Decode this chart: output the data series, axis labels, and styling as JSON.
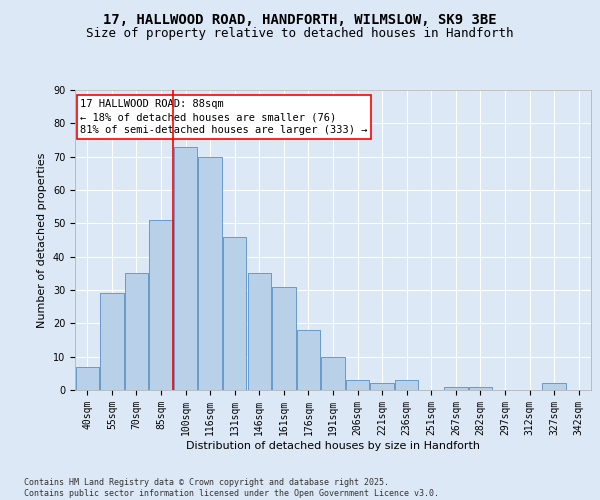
{
  "title_line1": "17, HALLWOOD ROAD, HANDFORTH, WILMSLOW, SK9 3BE",
  "title_line2": "Size of property relative to detached houses in Handforth",
  "xlabel": "Distribution of detached houses by size in Handforth",
  "ylabel": "Number of detached properties",
  "categories": [
    "40sqm",
    "55sqm",
    "70sqm",
    "85sqm",
    "100sqm",
    "116sqm",
    "131sqm",
    "146sqm",
    "161sqm",
    "176sqm",
    "191sqm",
    "206sqm",
    "221sqm",
    "236sqm",
    "251sqm",
    "267sqm",
    "282sqm",
    "297sqm",
    "312sqm",
    "327sqm",
    "342sqm"
  ],
  "values": [
    7,
    29,
    35,
    51,
    73,
    70,
    46,
    35,
    31,
    18,
    10,
    3,
    2,
    3,
    0,
    1,
    1,
    0,
    0,
    2,
    0
  ],
  "bar_color": "#b8d0e8",
  "bar_edge_color": "#6699cc",
  "background_color": "#dce8f5",
  "fig_background": "#dce8f5",
  "annotation_box_text": "17 HALLWOOD ROAD: 88sqm\n← 18% of detached houses are smaller (76)\n81% of semi-detached houses are larger (333) →",
  "vline_x": 3.5,
  "vline_color": "red",
  "ylim": [
    0,
    90
  ],
  "yticks": [
    0,
    10,
    20,
    30,
    40,
    50,
    60,
    70,
    80,
    90
  ],
  "footer_text": "Contains HM Land Registry data © Crown copyright and database right 2025.\nContains public sector information licensed under the Open Government Licence v3.0.",
  "grid_color": "#ffffff",
  "title_fontsize": 10,
  "subtitle_fontsize": 9,
  "tick_fontsize": 7,
  "annotation_fontsize": 7.5,
  "xlabel_fontsize": 8,
  "ylabel_fontsize": 8,
  "footer_fontsize": 6
}
